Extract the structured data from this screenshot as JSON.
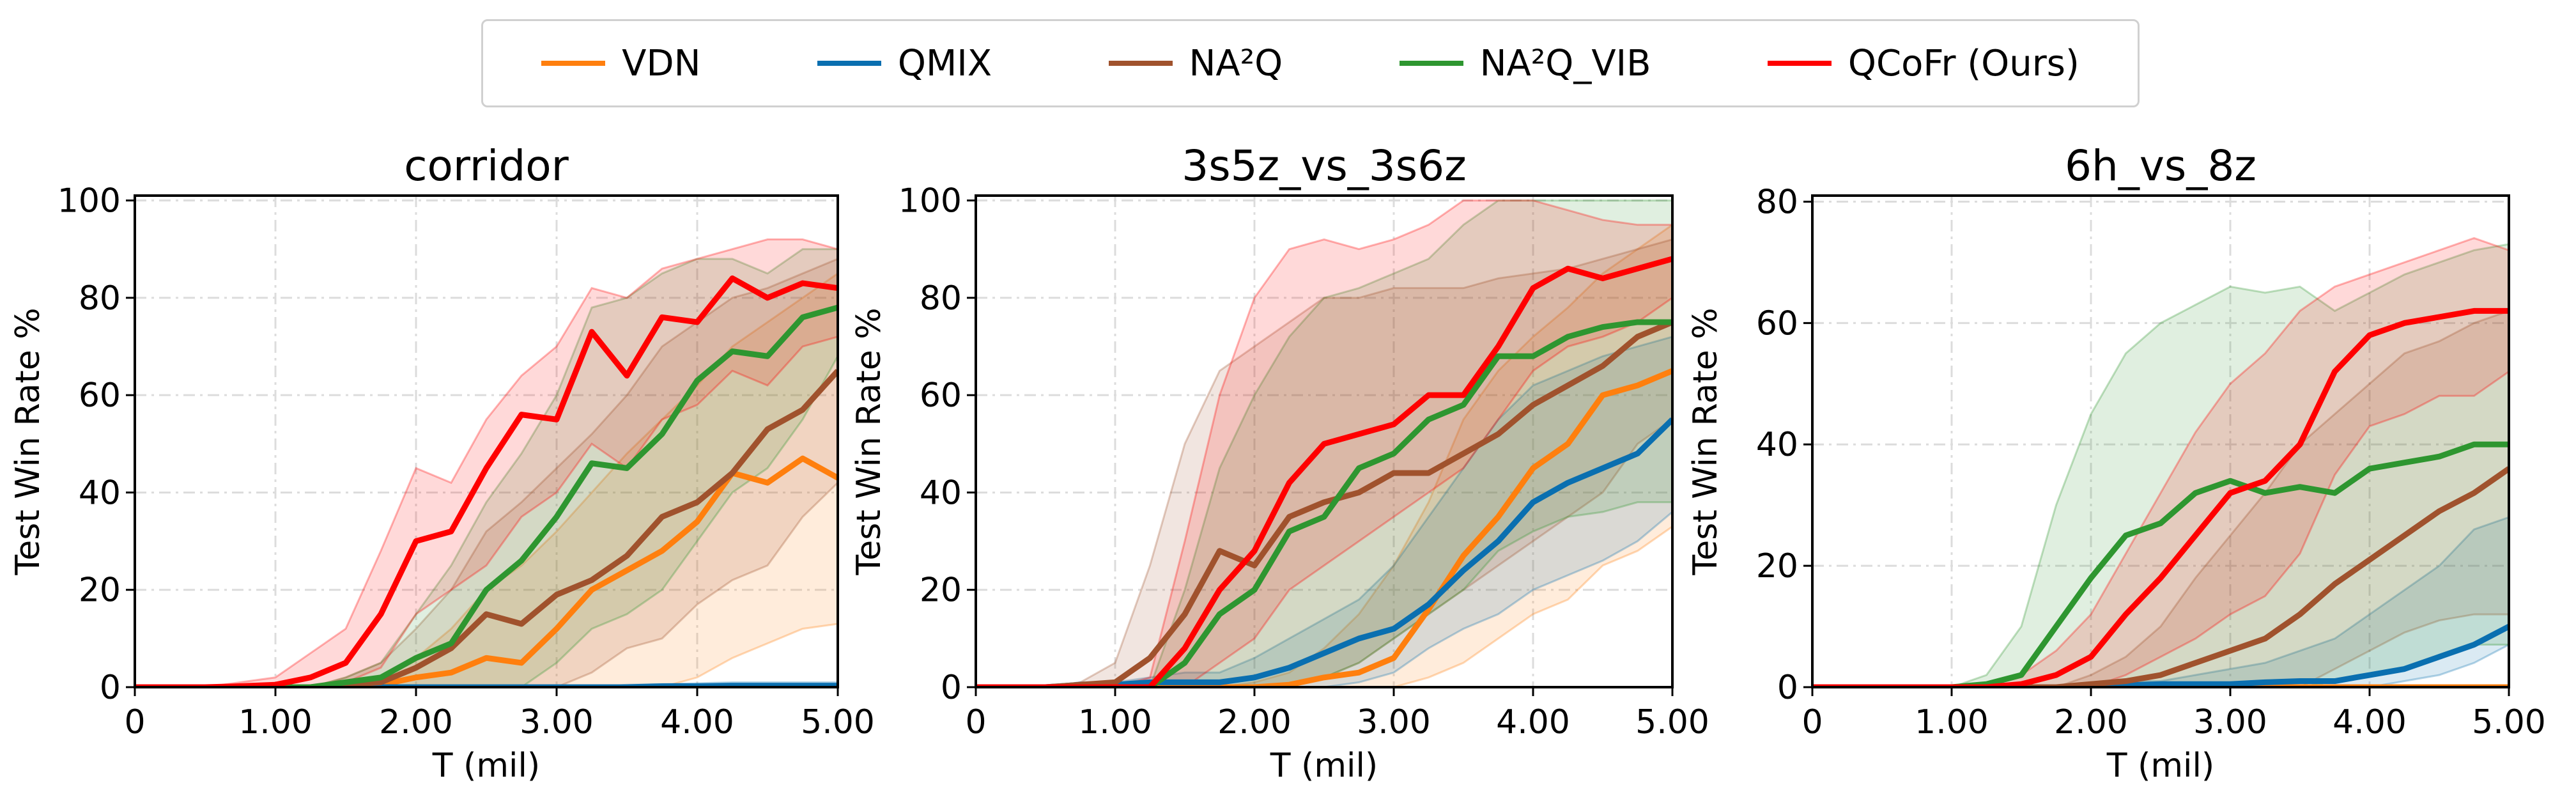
{
  "legend": {
    "placement": "top-center",
    "items": [
      {
        "label": "VDN",
        "color": "#ff7f0e"
      },
      {
        "label": "QMIX",
        "color": "#0a6fb0"
      },
      {
        "label": "NA²Q",
        "color": "#a0522d"
      },
      {
        "label": "NA²Q_VIB",
        "color": "#2e9630"
      },
      {
        "label": "QCoFr (Ours)",
        "color": "#ff0000"
      }
    ]
  },
  "chart_data": [
    {
      "type": "line",
      "title": "corridor",
      "xlabel": "T (mil)",
      "ylabel": "Test Win Rate %",
      "xlim": [
        0,
        5
      ],
      "ylim": [
        0,
        101
      ],
      "xticks": [
        "0",
        "1.00",
        "2.00",
        "3.00",
        "4.00",
        "5.00"
      ],
      "yticks": [
        "0",
        "20",
        "40",
        "60",
        "80",
        "100"
      ],
      "grid": true,
      "x": [
        0,
        0.25,
        0.5,
        0.75,
        1,
        1.25,
        1.5,
        1.75,
        2,
        2.25,
        2.5,
        2.75,
        3,
        3.25,
        3.5,
        3.75,
        4,
        4.25,
        4.5,
        4.75,
        5
      ],
      "series": [
        {
          "name": "VDN",
          "values": [
            0,
            0,
            0,
            0,
            0,
            0,
            0,
            0.5,
            2,
            3,
            6,
            5,
            12,
            20,
            24,
            28,
            34,
            44,
            42,
            47,
            43
          ],
          "lower": [
            0,
            0,
            0,
            0,
            0,
            0,
            0,
            0,
            0,
            0,
            0,
            0,
            0,
            0,
            0,
            0,
            2,
            6,
            9,
            12,
            13
          ],
          "upper": [
            0,
            0,
            0,
            0,
            0,
            0,
            0,
            2,
            6,
            12,
            20,
            25,
            32,
            40,
            48,
            55,
            62,
            70,
            75,
            80,
            85
          ]
        },
        {
          "name": "QMIX",
          "values": [
            0,
            0,
            0,
            0,
            0,
            0,
            0,
            0,
            0,
            0,
            0,
            0,
            0,
            0,
            0,
            0.2,
            0.2,
            0.3,
            0.3,
            0.3,
            0.3
          ],
          "lower": [
            0,
            0,
            0,
            0,
            0,
            0,
            0,
            0,
            0,
            0,
            0,
            0,
            0,
            0,
            0,
            0,
            0,
            0,
            0,
            0,
            0
          ],
          "upper": [
            0,
            0,
            0,
            0,
            0,
            0,
            0,
            0,
            0,
            0,
            0,
            0,
            0,
            0,
            0.5,
            0.6,
            0.8,
            1,
            1,
            1,
            1
          ]
        },
        {
          "name": "NA²Q",
          "values": [
            0,
            0,
            0,
            0,
            0,
            0,
            0.5,
            1,
            4,
            8,
            15,
            13,
            19,
            22,
            27,
            35,
            38,
            44,
            53,
            57,
            65
          ],
          "lower": [
            0,
            0,
            0,
            0,
            0,
            0,
            0,
            0,
            0,
            0,
            0,
            0,
            0,
            3,
            8,
            10,
            17,
            22,
            25,
            35,
            42
          ],
          "upper": [
            0,
            0,
            0,
            0,
            0,
            0,
            2,
            5,
            12,
            20,
            32,
            38,
            45,
            52,
            60,
            70,
            75,
            80,
            82,
            85,
            88
          ]
        },
        {
          "name": "NA²Q_VIB",
          "values": [
            0,
            0,
            0,
            0,
            0,
            0,
            1,
            2,
            6,
            9,
            20,
            26,
            35,
            46,
            45,
            52,
            63,
            69,
            68,
            76,
            78
          ],
          "lower": [
            0,
            0,
            0,
            0,
            0,
            0,
            0,
            0,
            0,
            0,
            0,
            0,
            5,
            12,
            15,
            20,
            30,
            40,
            45,
            55,
            68
          ],
          "upper": [
            0,
            0,
            0,
            0,
            0,
            0,
            2,
            5,
            15,
            25,
            38,
            48,
            60,
            78,
            80,
            85,
            88,
            88,
            85,
            90,
            90
          ]
        },
        {
          "name": "QCoFr (Ours)",
          "values": [
            0,
            0,
            0,
            0.2,
            0.5,
            2,
            5,
            15,
            30,
            32,
            45,
            56,
            55,
            73,
            64,
            76,
            75,
            84,
            80,
            83,
            82
          ],
          "lower": [
            0,
            0,
            0,
            0,
            0,
            0,
            1,
            4,
            15,
            20,
            25,
            35,
            40,
            50,
            45,
            55,
            58,
            65,
            62,
            70,
            72
          ],
          "upper": [
            0,
            0,
            0,
            1,
            2,
            7,
            12,
            28,
            45,
            42,
            55,
            64,
            70,
            82,
            80,
            86,
            88,
            90,
            92,
            92,
            90
          ]
        }
      ]
    },
    {
      "type": "line",
      "title": "3s5z_vs_3s6z",
      "xlabel": "T (mil)",
      "ylabel": "Test Win Rate %",
      "xlim": [
        0,
        5
      ],
      "ylim": [
        0,
        101
      ],
      "xticks": [
        "0",
        "1.00",
        "2.00",
        "3.00",
        "4.00",
        "5.00"
      ],
      "yticks": [
        "0",
        "20",
        "40",
        "60",
        "80",
        "100"
      ],
      "grid": true,
      "x": [
        0,
        0.25,
        0.5,
        0.75,
        1,
        1.25,
        1.5,
        1.75,
        2,
        2.25,
        2.5,
        2.75,
        3,
        3.25,
        3.5,
        3.75,
        4,
        4.25,
        4.5,
        4.75,
        5
      ],
      "series": [
        {
          "name": "VDN",
          "values": [
            0,
            0,
            0,
            0,
            0,
            0,
            0,
            0,
            0,
            0.5,
            2,
            3,
            6,
            16,
            27,
            35,
            45,
            50,
            60,
            62,
            65
          ],
          "lower": [
            0,
            0,
            0,
            0,
            0,
            0,
            0,
            0,
            0,
            0,
            0,
            0,
            0,
            2,
            5,
            10,
            15,
            18,
            25,
            28,
            33
          ],
          "upper": [
            0,
            0,
            0,
            0,
            0,
            0,
            0,
            0,
            1,
            3,
            8,
            15,
            25,
            38,
            55,
            65,
            72,
            78,
            85,
            90,
            95
          ]
        },
        {
          "name": "QMIX",
          "values": [
            0,
            0,
            0,
            0.5,
            0.5,
            1,
            1,
            1,
            2,
            4,
            7,
            10,
            12,
            17,
            24,
            30,
            38,
            42,
            45,
            48,
            55
          ],
          "lower": [
            0,
            0,
            0,
            0,
            0,
            0,
            0,
            0,
            0,
            0,
            0,
            1,
            3,
            8,
            12,
            15,
            20,
            23,
            26,
            30,
            36
          ],
          "upper": [
            0,
            0,
            0,
            1,
            1,
            2,
            3,
            3,
            6,
            10,
            14,
            18,
            25,
            35,
            45,
            55,
            62,
            65,
            68,
            70,
            72
          ]
        },
        {
          "name": "NA²Q",
          "values": [
            0,
            0,
            0,
            0.5,
            1,
            6,
            15,
            28,
            25,
            35,
            38,
            40,
            44,
            44,
            48,
            52,
            58,
            62,
            66,
            72,
            75
          ],
          "lower": [
            0,
            0,
            0,
            0,
            0,
            0,
            0,
            0,
            0,
            0,
            2,
            5,
            10,
            15,
            20,
            25,
            30,
            35,
            40,
            50,
            55
          ],
          "upper": [
            0,
            0,
            0,
            1,
            5,
            25,
            50,
            65,
            70,
            75,
            80,
            80,
            82,
            82,
            82,
            84,
            85,
            86,
            88,
            90,
            92
          ]
        },
        {
          "name": "NA²Q_VIB",
          "values": [
            0,
            0,
            0,
            0,
            0,
            0,
            5,
            15,
            20,
            32,
            35,
            45,
            48,
            55,
            58,
            68,
            68,
            72,
            74,
            75,
            75
          ],
          "lower": [
            0,
            0,
            0,
            0,
            0,
            0,
            0,
            0,
            0,
            0,
            2,
            5,
            10,
            15,
            20,
            28,
            32,
            35,
            36,
            38,
            38
          ],
          "upper": [
            0,
            0,
            0,
            0,
            0,
            0,
            20,
            45,
            60,
            72,
            80,
            82,
            85,
            88,
            95,
            100,
            100,
            100,
            100,
            100,
            100
          ]
        },
        {
          "name": "QCoFr (Ours)",
          "values": [
            0,
            0,
            0,
            0,
            0,
            0,
            8,
            20,
            28,
            42,
            50,
            52,
            54,
            60,
            60,
            70,
            82,
            86,
            84,
            86,
            88
          ],
          "lower": [
            0,
            0,
            0,
            0,
            0,
            0,
            0,
            5,
            10,
            20,
            25,
            30,
            35,
            40,
            45,
            55,
            65,
            70,
            72,
            75,
            80
          ],
          "upper": [
            0,
            0,
            0,
            0,
            0,
            2,
            30,
            60,
            80,
            90,
            92,
            90,
            92,
            95,
            100,
            100,
            100,
            98,
            96,
            95,
            95
          ]
        }
      ]
    },
    {
      "type": "line",
      "title": "6h_vs_8z",
      "xlabel": "T (mil)",
      "ylabel": "Test Win Rate %",
      "xlim": [
        0,
        5
      ],
      "ylim": [
        0,
        81
      ],
      "xticks": [
        "0",
        "1.00",
        "2.00",
        "3.00",
        "4.00",
        "5.00"
      ],
      "yticks": [
        "0",
        "20",
        "40",
        "60",
        "80"
      ],
      "grid": true,
      "x": [
        0,
        0.25,
        0.5,
        0.75,
        1,
        1.25,
        1.5,
        1.75,
        2,
        2.25,
        2.5,
        2.75,
        3,
        3.25,
        3.5,
        3.75,
        4,
        4.25,
        4.5,
        4.75,
        5
      ],
      "series": [
        {
          "name": "VDN",
          "values": [
            0,
            0,
            0,
            0,
            0,
            0,
            0,
            0,
            0,
            0,
            0,
            0,
            0,
            0,
            0,
            0,
            0,
            0,
            0,
            0,
            0
          ],
          "lower": [
            0,
            0,
            0,
            0,
            0,
            0,
            0,
            0,
            0,
            0,
            0,
            0,
            0,
            0,
            0,
            0,
            0,
            0,
            0,
            0,
            0
          ],
          "upper": [
            0,
            0,
            0,
            0,
            0,
            0,
            0,
            0,
            0,
            0,
            0,
            0,
            0,
            0,
            0,
            0,
            0,
            0,
            0,
            0,
            0
          ]
        },
        {
          "name": "QMIX",
          "values": [
            0,
            0,
            0,
            0,
            0,
            0,
            0,
            0,
            0,
            0.3,
            0.5,
            0.5,
            0.5,
            0.8,
            1,
            1,
            2,
            3,
            5,
            7,
            10
          ],
          "lower": [
            0,
            0,
            0,
            0,
            0,
            0,
            0,
            0,
            0,
            0,
            0,
            0,
            0,
            0,
            0,
            0,
            0,
            1,
            2,
            4,
            7
          ],
          "upper": [
            0,
            0,
            0,
            0,
            0,
            0,
            0,
            0,
            0,
            1,
            1,
            2,
            3,
            4,
            6,
            8,
            12,
            16,
            20,
            26,
            28
          ]
        },
        {
          "name": "NA²Q",
          "values": [
            0,
            0,
            0,
            0,
            0,
            0,
            0,
            0,
            0.5,
            1,
            2,
            4,
            6,
            8,
            12,
            17,
            21,
            25,
            29,
            32,
            36
          ],
          "lower": [
            0,
            0,
            0,
            0,
            0,
            0,
            0,
            0,
            0,
            0,
            0,
            0,
            0,
            0,
            0,
            3,
            6,
            9,
            11,
            12,
            12
          ],
          "upper": [
            0,
            0,
            0,
            0,
            0,
            0,
            0,
            0,
            2,
            5,
            10,
            18,
            25,
            32,
            40,
            45,
            50,
            55,
            57,
            60,
            62
          ]
        },
        {
          "name": "NA²Q_VIB",
          "values": [
            0,
            0,
            0,
            0,
            0,
            0.5,
            2,
            10,
            18,
            25,
            27,
            32,
            34,
            32,
            33,
            32,
            36,
            37,
            38,
            40,
            40
          ],
          "lower": [
            0,
            0,
            0,
            0,
            0,
            0,
            0,
            0,
            0,
            0,
            0,
            0,
            0,
            0,
            0,
            1,
            2,
            3,
            5,
            7,
            7
          ],
          "upper": [
            0,
            0,
            0,
            0,
            0,
            2,
            10,
            30,
            45,
            55,
            60,
            63,
            66,
            65,
            66,
            62,
            65,
            68,
            70,
            72,
            73
          ]
        },
        {
          "name": "QCoFr (Ours)",
          "values": [
            0,
            0,
            0,
            0,
            0,
            0,
            0.5,
            2,
            5,
            12,
            18,
            25,
            32,
            34,
            40,
            52,
            58,
            60,
            61,
            62,
            62
          ],
          "lower": [
            0,
            0,
            0,
            0,
            0,
            0,
            0,
            0,
            0,
            2,
            5,
            8,
            12,
            15,
            22,
            35,
            43,
            45,
            48,
            48,
            52
          ],
          "upper": [
            0,
            0,
            0,
            0,
            0,
            0,
            2,
            6,
            12,
            22,
            32,
            42,
            50,
            55,
            62,
            66,
            68,
            70,
            72,
            74,
            72
          ]
        }
      ]
    }
  ]
}
